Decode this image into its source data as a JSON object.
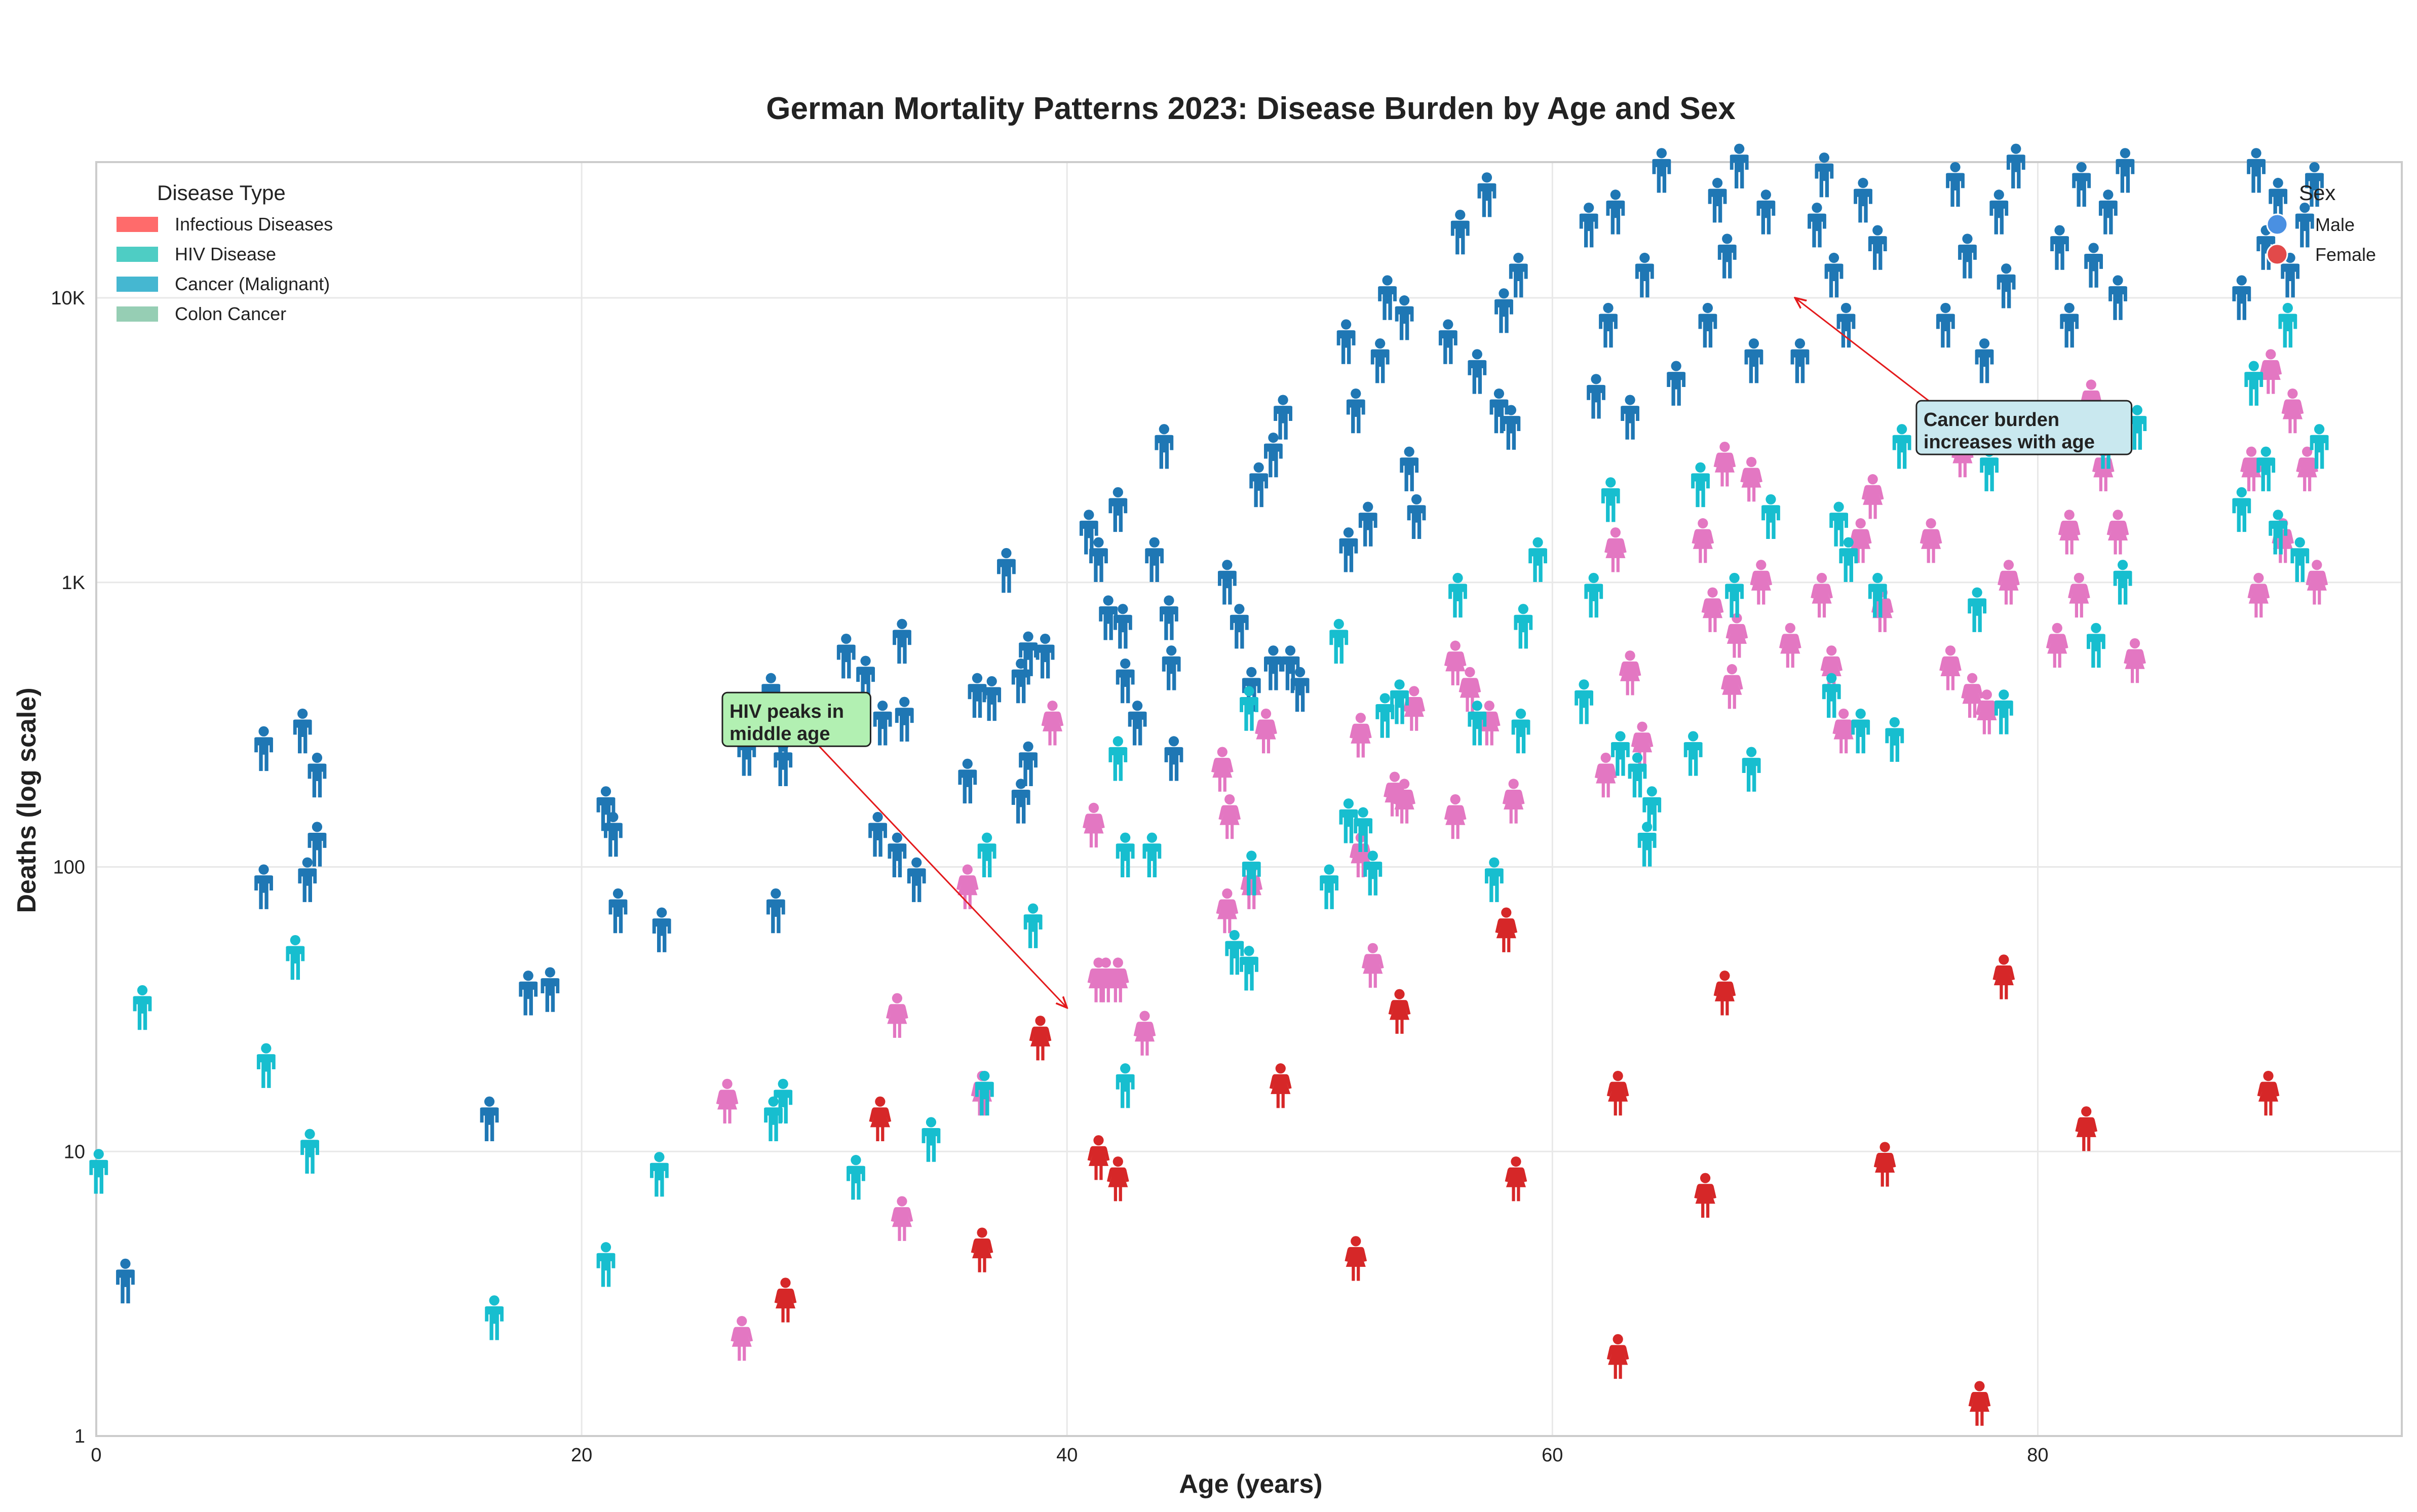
{
  "chart_data": {
    "type": "scatter",
    "title": "German Mortality Patterns 2023: Disease Burden by Age and Sex",
    "xlabel": "Age (years)",
    "ylabel": "Deaths (log scale)",
    "xlim": [
      0,
      95
    ],
    "ylim": [
      1,
      30000
    ],
    "yscale": "log",
    "grid": true,
    "xticks": [
      {
        "value": 0,
        "label": "0"
      },
      {
        "value": 20,
        "label": "20"
      },
      {
        "value": 40,
        "label": "40"
      },
      {
        "value": 60,
        "label": "60"
      },
      {
        "value": 80,
        "label": "80"
      }
    ],
    "yticks": [
      {
        "value": 1,
        "label": "1"
      },
      {
        "value": 10,
        "label": "10"
      },
      {
        "value": 100,
        "label": "100"
      },
      {
        "value": 1000,
        "label": "1K"
      },
      {
        "value": 10000,
        "label": "10K"
      }
    ],
    "legend_disease": {
      "title": "Disease Type",
      "placement": "top-left",
      "items": [
        {
          "label": "Infectious Diseases",
          "color": "#ff6b6b"
        },
        {
          "label": "HIV Disease",
          "color": "#4ecdc4"
        },
        {
          "label": "Cancer (Malignant)",
          "color": "#45b7d1"
        },
        {
          "label": "Colon Cancer",
          "color": "#96ceb4"
        }
      ]
    },
    "legend_sex": {
      "title": "Sex",
      "placement": "top-right",
      "items": [
        {
          "label": "Male",
          "color": "#4a90e2"
        },
        {
          "label": "Female",
          "color": "#e24a4a"
        }
      ]
    },
    "annotations": [
      {
        "text": [
          "HIV peaks in",
          "middle age"
        ],
        "anchor_x": 25.8,
        "anchor_y": 330,
        "target_x": 40,
        "target_y": 32,
        "bg": "#b2f0b2"
      },
      {
        "text": [
          "Cancer burden",
          "increases with age"
        ],
        "anchor_x": 75,
        "anchor_y": 3500,
        "target_x": 70,
        "target_y": 10000,
        "bg": "#c9e8ef"
      }
    ],
    "series": [
      {
        "name": "Cancer (Malignant), Male",
        "color": "#1f77b4",
        "points": [
          [
            1.2,
            3.5
          ],
          [
            6.9,
            85
          ],
          [
            6.9,
            260
          ],
          [
            8.5,
            300
          ],
          [
            8.7,
            90
          ],
          [
            9.1,
            120
          ],
          [
            9.1,
            210
          ],
          [
            16.2,
            13
          ],
          [
            17.8,
            36
          ],
          [
            18.7,
            37
          ],
          [
            21,
            160
          ],
          [
            21.3,
            130
          ],
          [
            21.5,
            70
          ],
          [
            23.3,
            60
          ],
          [
            26.8,
            250
          ],
          [
            27.8,
            400
          ],
          [
            28,
            70
          ],
          [
            28.3,
            230
          ],
          [
            28.3,
            300
          ],
          [
            30.9,
            550
          ],
          [
            31.7,
            460
          ],
          [
            32.4,
            320
          ],
          [
            33.2,
            620
          ],
          [
            33.3,
            330
          ],
          [
            32.2,
            130
          ],
          [
            33,
            110
          ],
          [
            33.8,
            90
          ],
          [
            35.9,
            200
          ],
          [
            36.3,
            400
          ],
          [
            36.9,
            390
          ],
          [
            37.5,
            1100
          ],
          [
            38.1,
            450
          ],
          [
            38.4,
            560
          ],
          [
            38.1,
            170
          ],
          [
            38.4,
            230
          ],
          [
            39.1,
            550
          ],
          [
            40.9,
            1500
          ],
          [
            41.3,
            1200
          ],
          [
            41.7,
            750
          ],
          [
            42.1,
            1800
          ],
          [
            42.3,
            700
          ],
          [
            42.4,
            450
          ],
          [
            42.9,
            320
          ],
          [
            43.6,
            1200
          ],
          [
            44,
            3000
          ],
          [
            44.2,
            750
          ],
          [
            44.3,
            500
          ],
          [
            44.4,
            240
          ],
          [
            46.6,
            1000
          ],
          [
            47.1,
            700
          ],
          [
            47.6,
            420
          ],
          [
            48.5,
            500
          ],
          [
            47.9,
            2200
          ],
          [
            48.5,
            2800
          ],
          [
            48.9,
            3800
          ],
          [
            49.2,
            500
          ],
          [
            49.6,
            420
          ],
          [
            51.5,
            7000
          ],
          [
            51.6,
            1300
          ],
          [
            51.9,
            4000
          ],
          [
            52.4,
            1600
          ],
          [
            52.9,
            6000
          ],
          [
            53.2,
            10000
          ],
          [
            53.9,
            8500
          ],
          [
            54.1,
            2500
          ],
          [
            54.4,
            1700
          ],
          [
            55.7,
            7000
          ],
          [
            56.2,
            17000
          ],
          [
            56.9,
            5500
          ],
          [
            57.3,
            23000
          ],
          [
            57.8,
            4000
          ],
          [
            58,
            9000
          ],
          [
            58.3,
            3500
          ],
          [
            58.6,
            12000
          ],
          [
            61.5,
            18000
          ],
          [
            61.8,
            4500
          ],
          [
            62.3,
            8000
          ],
          [
            62.6,
            20000
          ],
          [
            63.2,
            3800
          ],
          [
            63.8,
            12000
          ],
          [
            64.5,
            28000
          ],
          [
            65.1,
            5000
          ],
          [
            66.4,
            8000
          ],
          [
            66.8,
            22000
          ],
          [
            67.2,
            14000
          ],
          [
            67.7,
            29000
          ],
          [
            68.3,
            6000
          ],
          [
            68.8,
            20000
          ],
          [
            70.2,
            6000
          ],
          [
            70.9,
            18000
          ],
          [
            71.2,
            27000
          ],
          [
            71.6,
            12000
          ],
          [
            72.1,
            8000
          ],
          [
            72.8,
            22000
          ],
          [
            73.4,
            15000
          ],
          [
            76.2,
            8000
          ],
          [
            76.6,
            25000
          ],
          [
            77.1,
            14000
          ],
          [
            77.8,
            6000
          ],
          [
            78.4,
            20000
          ],
          [
            78.7,
            11000
          ],
          [
            79.1,
            29000
          ],
          [
            80.9,
            15000
          ],
          [
            81.3,
            8000
          ],
          [
            81.8,
            25000
          ],
          [
            82.3,
            13000
          ],
          [
            82.9,
            20000
          ],
          [
            83.3,
            10000
          ],
          [
            83.6,
            28000
          ],
          [
            88.4,
            10000
          ],
          [
            89,
            28000
          ],
          [
            89.4,
            15000
          ],
          [
            89.9,
            22000
          ],
          [
            90.4,
            12000
          ],
          [
            91,
            18000
          ],
          [
            91.4,
            25000
          ]
        ]
      },
      {
        "name": "Cancer (Malignant), Female",
        "color": "#e377c2",
        "points": [
          [
            26,
            15
          ],
          [
            26.6,
            2.2
          ],
          [
            33,
            30
          ],
          [
            33.2,
            5.8
          ],
          [
            35.9,
            85
          ],
          [
            36.5,
            16
          ],
          [
            39.4,
            320
          ],
          [
            41.1,
            140
          ],
          [
            41.3,
            40
          ],
          [
            41.6,
            40
          ],
          [
            42.1,
            40
          ],
          [
            43.2,
            26
          ],
          [
            46.4,
            220
          ],
          [
            46.7,
            150
          ],
          [
            46.6,
            70
          ],
          [
            47.6,
            85
          ],
          [
            48.2,
            300
          ],
          [
            52.1,
            290
          ],
          [
            52.1,
            110
          ],
          [
            52.6,
            45
          ],
          [
            53.5,
            180
          ],
          [
            53.9,
            170
          ],
          [
            54.3,
            360
          ],
          [
            56,
            150
          ],
          [
            56,
            520
          ],
          [
            56.6,
            420
          ],
          [
            57.4,
            320
          ],
          [
            58.4,
            170
          ],
          [
            62.2,
            210
          ],
          [
            62.6,
            1300
          ],
          [
            63.2,
            480
          ],
          [
            63.7,
            270
          ],
          [
            66.2,
            1400
          ],
          [
            66.6,
            800
          ],
          [
            67.1,
            2600
          ],
          [
            67.6,
            650
          ],
          [
            67.4,
            430
          ],
          [
            68.2,
            2300
          ],
          [
            68.6,
            1000
          ],
          [
            69.8,
            600
          ],
          [
            71.1,
            900
          ],
          [
            71.5,
            500
          ],
          [
            72,
            300
          ],
          [
            72.7,
            1400
          ],
          [
            73.2,
            2000
          ],
          [
            73.6,
            800
          ],
          [
            75.6,
            1400
          ],
          [
            76.4,
            500
          ],
          [
            76.9,
            2800
          ],
          [
            77.3,
            400
          ],
          [
            77.9,
            350
          ],
          [
            78.3,
            3400
          ],
          [
            78.8,
            1000
          ],
          [
            80.8,
            600
          ],
          [
            81.3,
            1500
          ],
          [
            81.7,
            900
          ],
          [
            82.2,
            4300
          ],
          [
            82.7,
            2500
          ],
          [
            83.3,
            1500
          ],
          [
            84,
            530
          ],
          [
            88.8,
            2500
          ],
          [
            89.1,
            900
          ],
          [
            89.6,
            5500
          ],
          [
            90.1,
            1400
          ],
          [
            90.5,
            4000
          ],
          [
            91.1,
            2500
          ],
          [
            91.5,
            1000
          ]
        ]
      },
      {
        "name": "HIV Disease, Male",
        "color": "#17becf",
        "points": [
          [
            0.1,
            8.5
          ],
          [
            1.9,
            32
          ],
          [
            7,
            20
          ],
          [
            8.2,
            48
          ],
          [
            8.8,
            10
          ],
          [
            16.4,
            2.6
          ],
          [
            21,
            4
          ],
          [
            23.2,
            8.3
          ],
          [
            27.9,
            13
          ],
          [
            28.3,
            15
          ],
          [
            31.3,
            8.1
          ],
          [
            34.4,
            11
          ],
          [
            36.6,
            16
          ],
          [
            36.7,
            110
          ],
          [
            38.6,
            62
          ],
          [
            42.1,
            240
          ],
          [
            42.4,
            17
          ],
          [
            42.4,
            110
          ],
          [
            43.5,
            110
          ],
          [
            46.9,
            50
          ],
          [
            47.5,
            44
          ],
          [
            47.5,
            360
          ],
          [
            47.6,
            95
          ],
          [
            50.8,
            85
          ],
          [
            51.2,
            620
          ],
          [
            51.6,
            145
          ],
          [
            52.2,
            135
          ],
          [
            52.6,
            95
          ],
          [
            53.1,
            340
          ],
          [
            53.7,
            380
          ],
          [
            56.1,
            900
          ],
          [
            56.9,
            320
          ],
          [
            57.6,
            90
          ],
          [
            58.7,
            300
          ],
          [
            58.8,
            700
          ],
          [
            59.4,
            1200
          ],
          [
            61.3,
            380
          ],
          [
            61.7,
            900
          ],
          [
            62.4,
            1950
          ],
          [
            62.8,
            250
          ],
          [
            63.5,
            210
          ],
          [
            63.9,
            120
          ],
          [
            64.1,
            160
          ],
          [
            65.8,
            250
          ],
          [
            66.1,
            2200
          ],
          [
            67.5,
            900
          ],
          [
            68.2,
            220
          ],
          [
            69,
            1700
          ],
          [
            71.5,
            400
          ],
          [
            71.8,
            1600
          ],
          [
            72.2,
            1200
          ],
          [
            72.7,
            300
          ],
          [
            73.4,
            900
          ],
          [
            74.1,
            280
          ],
          [
            74.4,
            3000
          ],
          [
            77.5,
            800
          ],
          [
            78,
            2500
          ],
          [
            78.6,
            350
          ],
          [
            82.4,
            600
          ],
          [
            82.8,
            3000
          ],
          [
            83.5,
            1000
          ],
          [
            84.1,
            3500
          ],
          [
            88.4,
            1800
          ],
          [
            88.9,
            5000
          ],
          [
            89.4,
            2500
          ],
          [
            89.9,
            1500
          ],
          [
            90.3,
            8000
          ],
          [
            90.8,
            1200
          ],
          [
            91.6,
            3000
          ]
        ]
      },
      {
        "name": "Infectious Diseases, Female",
        "color": "#d62728",
        "points": [
          [
            28.4,
            3
          ],
          [
            32.3,
            13
          ],
          [
            36.5,
            4.5
          ],
          [
            38.9,
            25
          ],
          [
            41.3,
            9.5
          ],
          [
            42.1,
            8
          ],
          [
            48.8,
            17
          ],
          [
            51.9,
            4.2
          ],
          [
            53.7,
            31
          ],
          [
            58.1,
            60
          ],
          [
            58.5,
            8
          ],
          [
            62.7,
            1.9
          ],
          [
            62.7,
            16
          ],
          [
            66.3,
            7
          ],
          [
            67.1,
            36
          ],
          [
            73.7,
            9
          ],
          [
            77.6,
            1.3
          ],
          [
            78.6,
            41
          ],
          [
            82,
            12
          ],
          [
            89.5,
            16
          ]
        ]
      }
    ]
  }
}
